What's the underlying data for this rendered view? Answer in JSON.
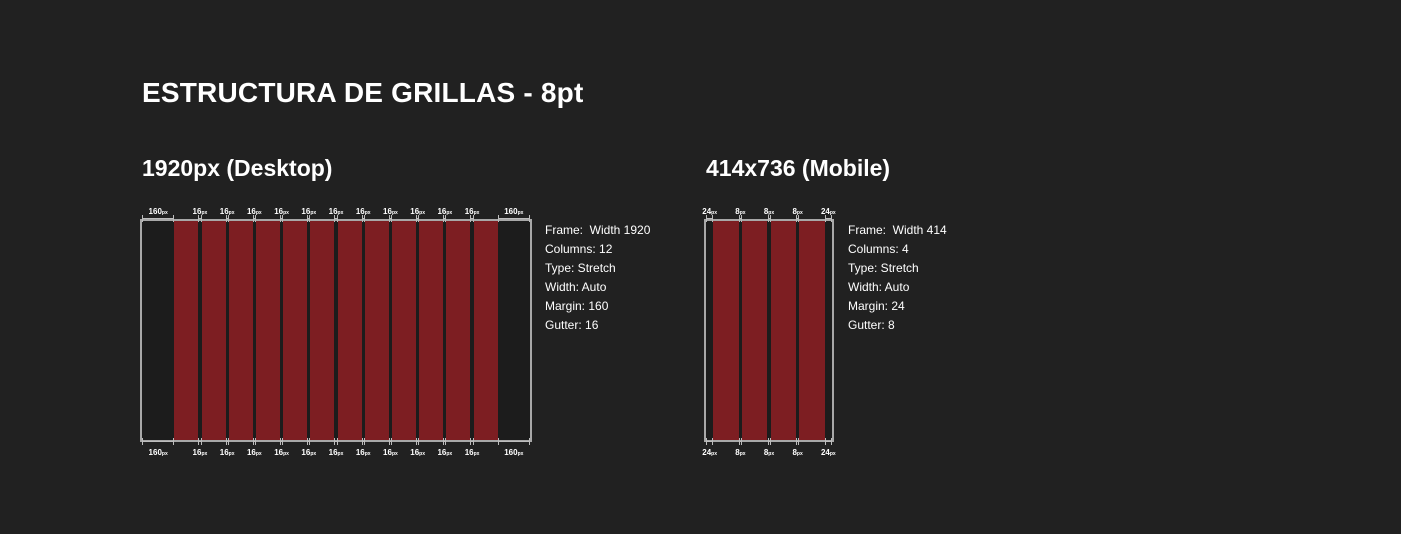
{
  "title": "ESTRUCTURA DE GRILLAS - 8pt",
  "colors": {
    "background": "#212121",
    "column": "#7d1e22",
    "frame_border": "#a8a8a8"
  },
  "grids": [
    {
      "id": "desktop",
      "heading": "1920px (Desktop)",
      "frame_width": 1920,
      "columns": 12,
      "margin": 160,
      "gutter": 16,
      "unit": "px",
      "specs": [
        "Frame:  Width 1920",
        "Columns: 12",
        "Type: Stretch",
        "Width: Auto",
        "Margin: 160",
        "Gutter: 16"
      ]
    },
    {
      "id": "mobile",
      "heading": "414x736 (Mobile)",
      "frame_width": 414,
      "columns": 4,
      "margin": 24,
      "gutter": 8,
      "unit": "px",
      "specs": [
        "Frame:  Width 414",
        "Columns: 4",
        "Type: Stretch",
        "Width: Auto",
        "Margin: 24",
        "Gutter: 8"
      ]
    }
  ]
}
